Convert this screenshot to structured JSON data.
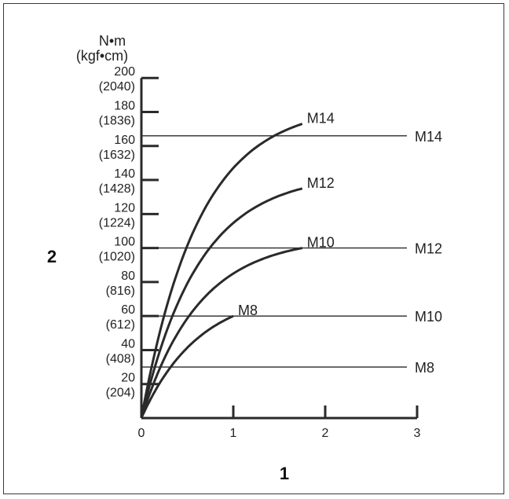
{
  "chart_data": {
    "type": "line",
    "title": "",
    "xlabel": "1",
    "ylabel": "2",
    "y_unit_line1": "N•m",
    "y_unit_line2": "(kgf•cm)",
    "xlim": [
      0,
      3
    ],
    "ylim": [
      0,
      200
    ],
    "x_ticks": [
      "0",
      "1",
      "2",
      "3"
    ],
    "y_ticks": [
      {
        "value": 20,
        "label": "20",
        "alt": "(204)"
      },
      {
        "value": 40,
        "label": "40",
        "alt": "(408)"
      },
      {
        "value": 60,
        "label": "60",
        "alt": "(612)"
      },
      {
        "value": 80,
        "label": "80",
        "alt": "(816)"
      },
      {
        "value": 100,
        "label": "100",
        "alt": "(1020)"
      },
      {
        "value": 120,
        "label": "120",
        "alt": "(1224)"
      },
      {
        "value": 140,
        "label": "140",
        "alt": "(1428)"
      },
      {
        "value": 160,
        "label": "160",
        "alt": "(1632)"
      },
      {
        "value": 180,
        "label": "180",
        "alt": "(1836)"
      },
      {
        "value": 200,
        "label": "200",
        "alt": "(2040)"
      }
    ],
    "series": [
      {
        "name": "M14",
        "x_end": 1.75,
        "y_end": 173
      },
      {
        "name": "M12",
        "x_end": 1.75,
        "y_end": 135
      },
      {
        "name": "M10",
        "x_end": 1.75,
        "y_end": 100
      },
      {
        "name": "M8",
        "x_end": 1.0,
        "y_end": 60
      }
    ],
    "reference_lines": [
      {
        "name": "M14",
        "y": 166
      },
      {
        "name": "M12",
        "y": 100
      },
      {
        "name": "M10",
        "y": 60
      },
      {
        "name": "M8",
        "y": 30
      }
    ],
    "grid": false,
    "legend": "none",
    "line_color": "#2a2a2a"
  }
}
